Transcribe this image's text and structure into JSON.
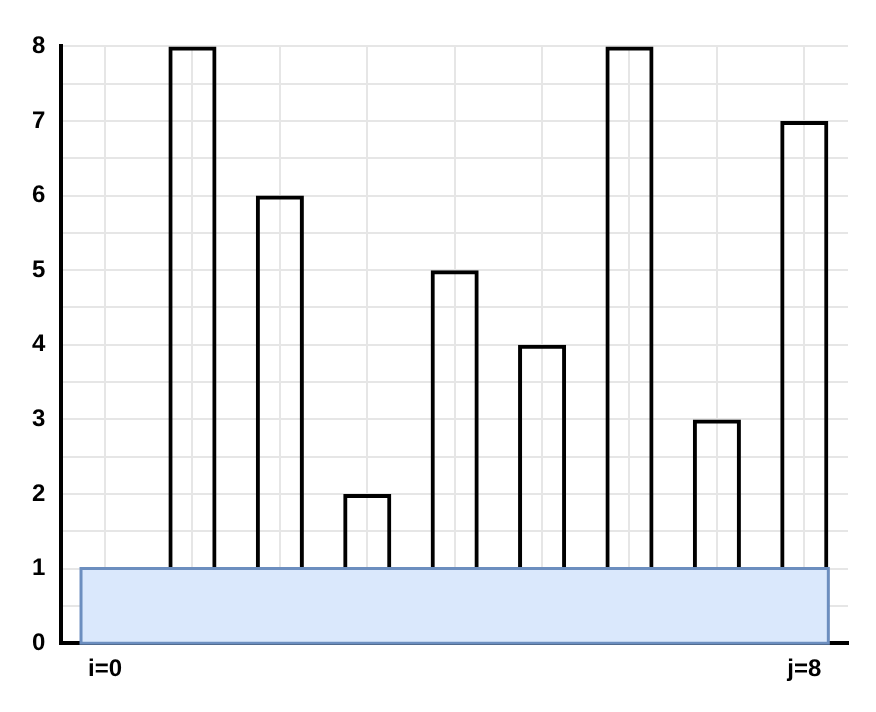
{
  "chart_data": {
    "type": "bar",
    "categories": [
      "i=0",
      null,
      null,
      null,
      null,
      null,
      null,
      null,
      "j=8"
    ],
    "values": [
      null,
      8,
      6,
      2,
      5,
      4,
      8,
      3,
      7
    ],
    "color": "#000000",
    "ylim": [
      0,
      8
    ],
    "yticks": [
      0,
      {
        "value": 0.5,
        "label": null
      },
      1,
      {
        "value": 1.5,
        "label": null
      },
      2,
      {
        "value": 2.5,
        "label": null
      },
      3,
      {
        "value": 3.5,
        "label": null
      },
      4,
      {
        "value": 4.5,
        "label": null
      },
      5,
      {
        "value": 5.5,
        "label": null
      },
      6,
      {
        "value": 6.5,
        "label": null
      },
      7,
      {
        "value": 7.5,
        "label": null
      },
      8
    ],
    "bands": [
      {
        "axis": "y",
        "from": 0,
        "to": 1,
        "color": "#dae8fc"
      }
    ],
    "grid": true
  }
}
